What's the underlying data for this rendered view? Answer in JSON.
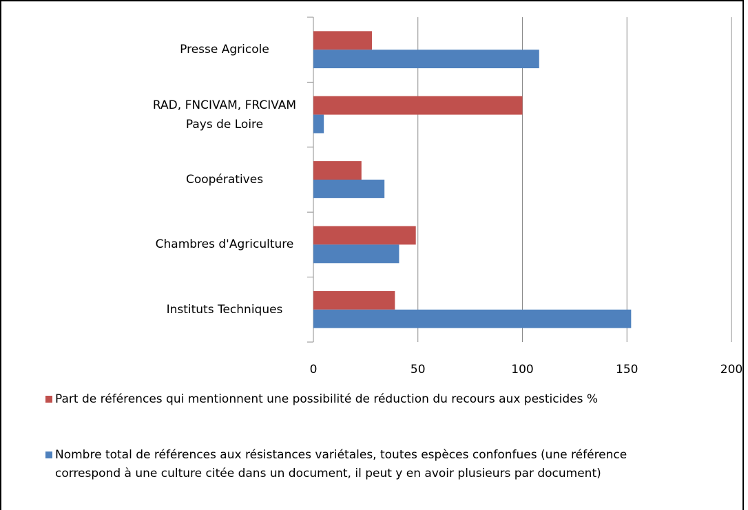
{
  "chart_data": {
    "type": "hbar",
    "categories": [
      "Presse Agricole",
      "RAD, FNCIVAM, FRCIVAM Pays de Loire",
      "Coopératives",
      "Chambres d'Agriculture",
      "Instituts Techniques"
    ],
    "series": [
      {
        "name": "Part de références qui mentionnent une possibilité de réduction du recours aux pesticides %",
        "color": "#c0504d",
        "values": [
          28,
          100,
          23,
          49,
          39
        ]
      },
      {
        "name": "Nombre total de références aux résistances variétales, toutes espèces confonfues (une référence correspond à une culture citée dans un document, il peut y en avoir plusieurs par document)",
        "color": "#4f81bd",
        "values": [
          108,
          5,
          34,
          41,
          152
        ]
      }
    ],
    "xlim": [
      0,
      200
    ],
    "xticks": [
      0,
      50,
      100,
      150,
      200
    ],
    "grid": true,
    "legend": "bottom"
  }
}
